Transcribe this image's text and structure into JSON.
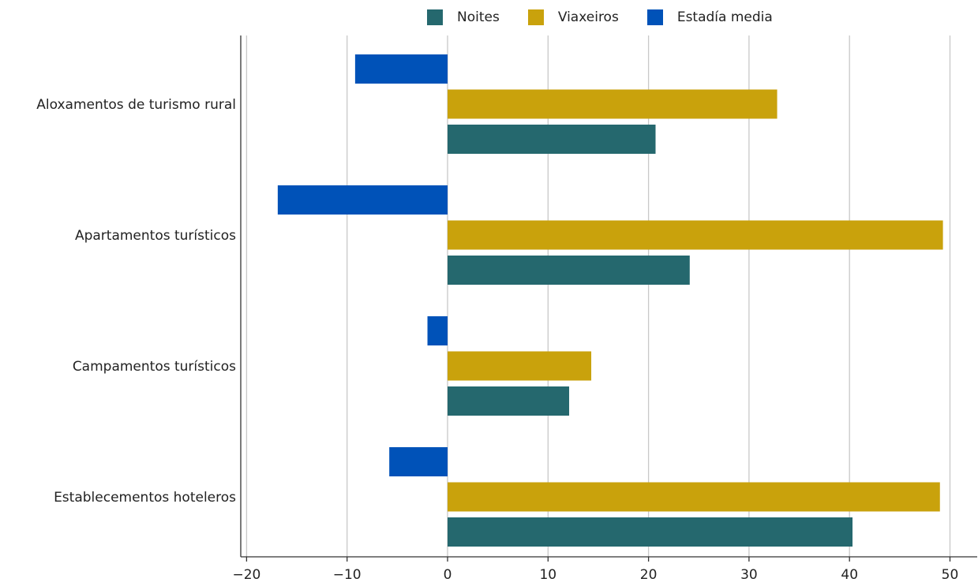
{
  "chart_data": {
    "type": "bar",
    "orientation": "horizontal",
    "categories": [
      "Aloxamentos de turismo rural",
      "Apartamentos turísticos",
      "Campamentos turísticos",
      "Establecementos hoteleros"
    ],
    "series": [
      {
        "name": "Estadía media",
        "color": "#0052b8",
        "values": [
          -9.2,
          -16.9,
          -2.0,
          -5.8
        ]
      },
      {
        "name": "Viaxeiros",
        "color": "#c9a20c",
        "values": [
          32.8,
          49.3,
          14.3,
          49.0
        ]
      },
      {
        "name": "Noites",
        "color": "#25686e",
        "values": [
          20.7,
          24.1,
          12.1,
          40.3
        ]
      }
    ],
    "legend_order": [
      "Noites",
      "Viaxeiros",
      "Estadía media"
    ],
    "xlim": [
      -20.5,
      51.5
    ],
    "xticks": [
      -20,
      -10,
      0,
      10,
      20,
      30,
      40,
      50
    ],
    "xtick_labels": [
      "−20",
      "−10",
      "0",
      "10",
      "20",
      "30",
      "40",
      "50"
    ],
    "grid": true,
    "legend_position": "top",
    "title": "",
    "xlabel": "",
    "ylabel": ""
  }
}
